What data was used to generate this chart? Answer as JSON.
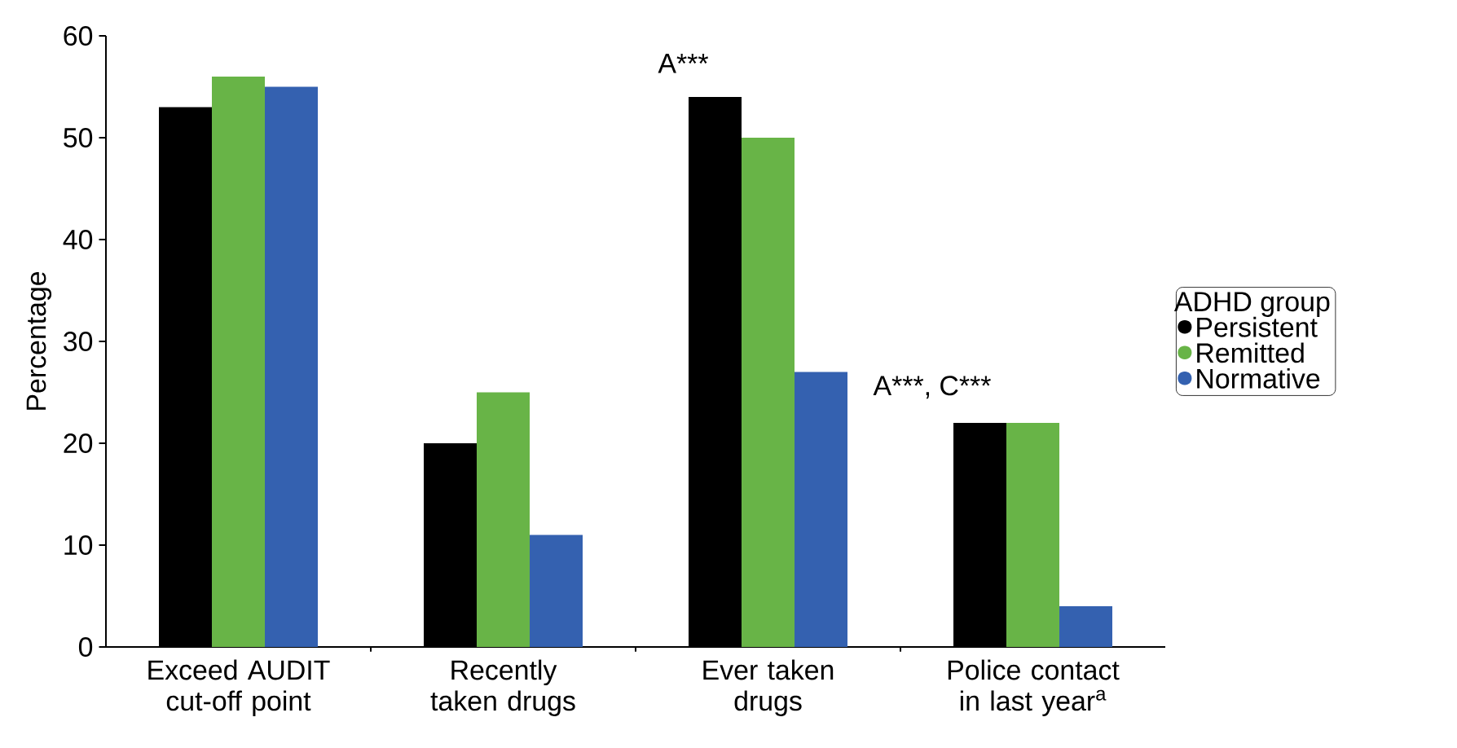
{
  "chart_data": {
    "type": "bar",
    "ylabel": "Percentage",
    "legend_title": "ADHD group",
    "categories": [
      "Exceed AUDIT cut-off point",
      "Recently taken drugs",
      "Ever taken drugs",
      "Police contact in last year$^{a}$"
    ],
    "series": [
      {
        "name": "Persistent",
        "color": "#000000",
        "values": [
          53,
          20,
          54,
          22
        ]
      },
      {
        "name": "Remitted",
        "color": "#68b447",
        "values": [
          56,
          25,
          50,
          22
        ]
      },
      {
        "name": "Normative",
        "color": "#3461b0",
        "values": [
          55,
          11,
          27,
          4
        ]
      }
    ],
    "ylim": [
      0,
      60
    ],
    "yticks": [
      0,
      10,
      20,
      30,
      40,
      50,
      60
    ],
    "annotations": [
      "A***",
      "A***, C***"
    ],
    "legend": "right",
    "grid": false
  }
}
